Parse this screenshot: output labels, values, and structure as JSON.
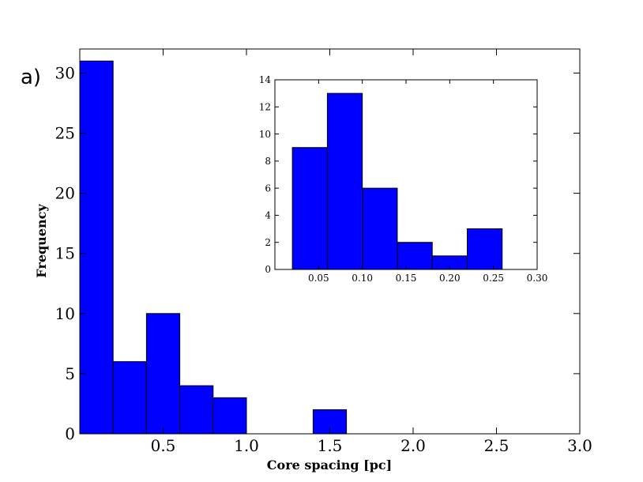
{
  "panel_label": "a)",
  "colors": {
    "bar_fill": "#0000ff",
    "bar_edge": "#000000",
    "axes": "#000000"
  },
  "chart_data": [
    {
      "type": "bar",
      "role": "main-histogram",
      "xlabel": "Core spacing [pc]",
      "ylabel": "Frequency",
      "xlim": [
        0,
        3.0
      ],
      "ylim": [
        0,
        32
      ],
      "xticks": [
        0.5,
        1.0,
        1.5,
        2.0,
        2.5,
        3.0
      ],
      "xtick_labels": [
        "0.5",
        "1.0",
        "1.5",
        "2.0",
        "2.5",
        "3.0"
      ],
      "yticks": [
        0,
        5,
        10,
        15,
        20,
        25,
        30
      ],
      "ytick_labels": [
        "0",
        "5",
        "10",
        "15",
        "20",
        "25",
        "30"
      ],
      "bins": [
        {
          "x0": 0.0,
          "x1": 0.2,
          "count": 31
        },
        {
          "x0": 0.2,
          "x1": 0.4,
          "count": 6
        },
        {
          "x0": 0.4,
          "x1": 0.6,
          "count": 10
        },
        {
          "x0": 0.6,
          "x1": 0.8,
          "count": 4
        },
        {
          "x0": 0.8,
          "x1": 1.0,
          "count": 3
        },
        {
          "x0": 1.4,
          "x1": 1.6,
          "count": 2
        }
      ],
      "grid": false,
      "legend": "none"
    },
    {
      "type": "bar",
      "role": "inset-histogram",
      "xlim": [
        0,
        0.3
      ],
      "ylim": [
        0,
        14
      ],
      "xticks": [
        0.05,
        0.1,
        0.15,
        0.2,
        0.25,
        0.3
      ],
      "xtick_labels": [
        "0.05",
        "0.10",
        "0.15",
        "0.20",
        "0.25",
        "0.30"
      ],
      "yticks": [
        0,
        2,
        4,
        6,
        8,
        10,
        12,
        14
      ],
      "ytick_labels": [
        "0",
        "2",
        "4",
        "6",
        "8",
        "10",
        "12",
        "14"
      ],
      "bins": [
        {
          "x0": 0.02,
          "x1": 0.06,
          "count": 9
        },
        {
          "x0": 0.06,
          "x1": 0.1,
          "count": 13
        },
        {
          "x0": 0.1,
          "x1": 0.14,
          "count": 6
        },
        {
          "x0": 0.14,
          "x1": 0.18,
          "count": 2
        },
        {
          "x0": 0.18,
          "x1": 0.22,
          "count": 1
        },
        {
          "x0": 0.22,
          "x1": 0.26,
          "count": 3
        }
      ],
      "grid": false,
      "legend": "none"
    }
  ]
}
